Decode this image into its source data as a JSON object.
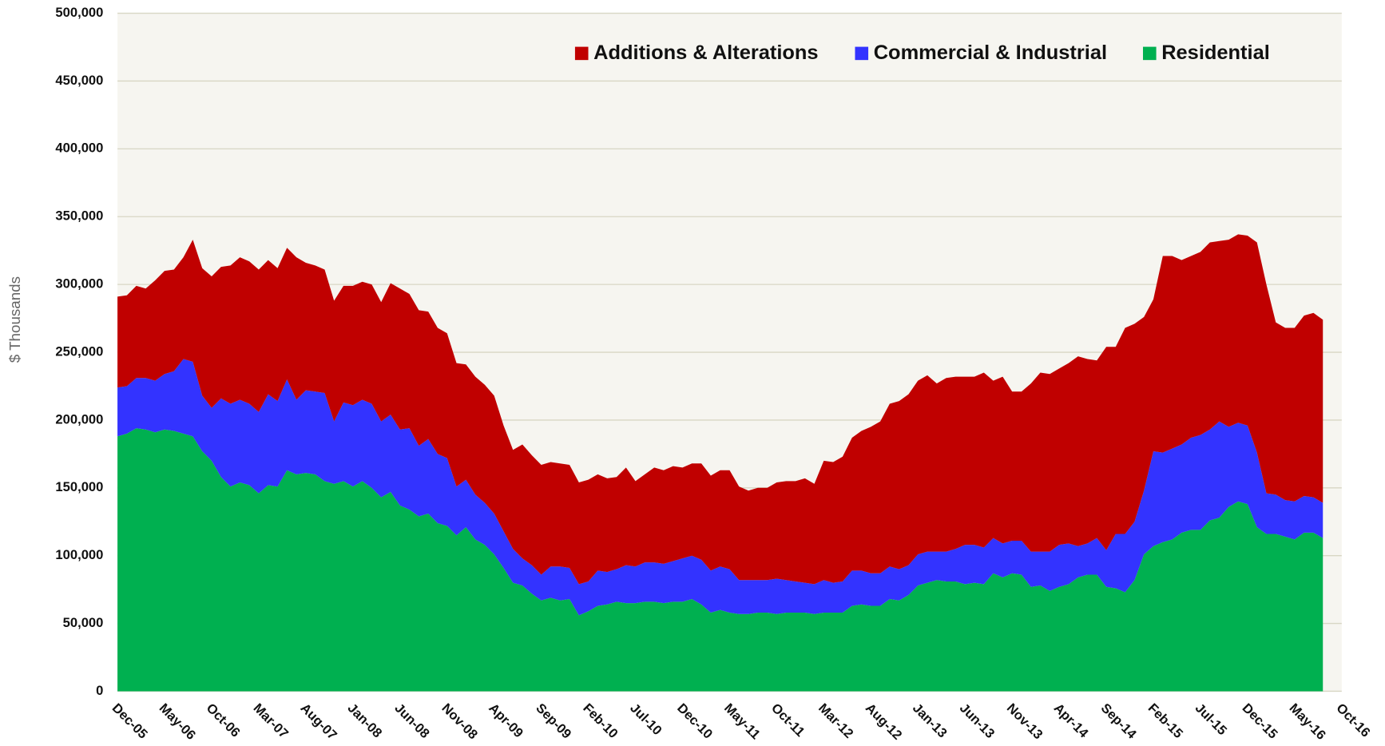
{
  "chart_data": {
    "type": "area",
    "stacked": true,
    "y_label": "$ Thousands",
    "categories": [
      "Dec-05",
      null,
      null,
      null,
      null,
      "May-06",
      null,
      null,
      null,
      null,
      "Oct-06",
      null,
      null,
      null,
      null,
      "Mar-07",
      null,
      null,
      null,
      null,
      "Aug-07",
      null,
      null,
      null,
      null,
      "Jan-08",
      null,
      null,
      null,
      null,
      "Jun-08",
      null,
      null,
      null,
      null,
      "Nov-08",
      null,
      null,
      null,
      null,
      "Apr-09",
      null,
      null,
      null,
      null,
      "Sep-09",
      null,
      null,
      null,
      null,
      "Feb-10",
      null,
      null,
      null,
      null,
      "Jul-10",
      null,
      null,
      null,
      null,
      "Dec-10",
      null,
      null,
      null,
      null,
      "May-11",
      null,
      null,
      null,
      null,
      "Oct-11",
      null,
      null,
      null,
      null,
      "Mar-12",
      null,
      null,
      null,
      null,
      "Aug-12",
      null,
      null,
      null,
      null,
      "Jan-13",
      null,
      null,
      null,
      null,
      "Jun-13",
      null,
      null,
      null,
      null,
      "Nov-13",
      null,
      null,
      null,
      null,
      "Apr-14",
      null,
      null,
      null,
      null,
      "Sep-14",
      null,
      null,
      null,
      null,
      "Feb-15",
      null,
      null,
      null,
      null,
      "Jul-15",
      null,
      null,
      null,
      null,
      "Dec-15",
      null,
      null,
      null,
      null,
      "May-16",
      null,
      null,
      null,
      null,
      "Oct-16"
    ],
    "series": [
      {
        "name": "Additions & Alterations",
        "color": "#c00000",
        "values": [
          67000,
          67000,
          68000,
          66000,
          74000,
          76000,
          75000,
          75000,
          90000,
          94000,
          97000,
          97000,
          102000,
          105000,
          105000,
          105000,
          99000,
          98000,
          97000,
          105000,
          94000,
          93000,
          91000,
          89000,
          86000,
          88000,
          87000,
          88000,
          88000,
          97000,
          104000,
          99000,
          100000,
          94000,
          93000,
          92000,
          91000,
          85000,
          87000,
          87000,
          87000,
          78000,
          73000,
          84000,
          81000,
          81000,
          77000,
          76000,
          76000,
          75000,
          75000,
          71000,
          69000,
          68000,
          72000,
          63000,
          65000,
          70000,
          69000,
          70000,
          67000,
          68000,
          71000,
          70000,
          71000,
          73000,
          69000,
          66000,
          68000,
          68000,
          71000,
          73000,
          74000,
          77000,
          74000,
          88000,
          89000,
          92000,
          98000,
          103000,
          108000,
          112000,
          120000,
          124000,
          126000,
          128000,
          130000,
          124000,
          128000,
          127000,
          124000,
          124000,
          129000,
          116000,
          123000,
          110000,
          110000,
          124000,
          132000,
          131000,
          130000,
          133000,
          140000,
          136000,
          131000,
          150000,
          138000,
          152000,
          146000,
          128000,
          112000,
          145000,
          142000,
          136000,
          134000,
          135000,
          138000,
          133000,
          138000,
          139000,
          140000,
          155000,
          154000,
          127000,
          127000,
          128000,
          133000,
          136000,
          135000,
          null,
          null
        ]
      },
      {
        "name": "Commercial & Industrial",
        "color": "#3333ff",
        "values": [
          36000,
          35000,
          37000,
          38000,
          38000,
          41000,
          44000,
          55000,
          55000,
          41000,
          39000,
          58000,
          61000,
          61000,
          60000,
          60000,
          67000,
          63000,
          67000,
          55000,
          61000,
          61000,
          65000,
          46000,
          58000,
          60000,
          60000,
          62000,
          56000,
          57000,
          56000,
          60000,
          52000,
          55000,
          51000,
          50000,
          36000,
          35000,
          33000,
          31000,
          30000,
          27000,
          25000,
          20000,
          21000,
          19000,
          23000,
          25000,
          23000,
          23000,
          22000,
          26000,
          24000,
          24000,
          28000,
          27000,
          29000,
          29000,
          29000,
          30000,
          32000,
          32000,
          33000,
          31000,
          32000,
          32000,
          25000,
          25000,
          24000,
          24000,
          26000,
          24000,
          23000,
          22000,
          22000,
          24000,
          22000,
          23000,
          26000,
          25000,
          24000,
          24000,
          24000,
          23000,
          22000,
          23000,
          23000,
          21000,
          22000,
          24000,
          29000,
          28000,
          27000,
          26000,
          25000,
          24000,
          25000,
          26000,
          25000,
          29000,
          31000,
          30000,
          23000,
          23000,
          27000,
          27000,
          40000,
          43000,
          43000,
          47000,
          70000,
          66000,
          67000,
          65000,
          68000,
          70000,
          67000,
          71000,
          59000,
          58000,
          58000,
          55000,
          30000,
          29000,
          27000,
          28000,
          27000,
          26000,
          26000,
          null,
          null
        ]
      },
      {
        "name": "Residential",
        "color": "#00b050",
        "values": [
          188000,
          190000,
          194000,
          193000,
          191000,
          193000,
          192000,
          190000,
          188000,
          177000,
          170000,
          158000,
          151000,
          154000,
          152000,
          146000,
          152000,
          151000,
          163000,
          160000,
          161000,
          160000,
          155000,
          153000,
          155000,
          151000,
          155000,
          150000,
          143000,
          147000,
          137000,
          134000,
          129000,
          131000,
          124000,
          122000,
          115000,
          121000,
          112000,
          108000,
          101000,
          91000,
          80000,
          78000,
          72000,
          67000,
          69000,
          67000,
          68000,
          56000,
          59000,
          63000,
          64000,
          66000,
          65000,
          65000,
          66000,
          66000,
          65000,
          66000,
          66000,
          68000,
          64000,
          58000,
          60000,
          58000,
          57000,
          57000,
          58000,
          58000,
          57000,
          58000,
          58000,
          58000,
          57000,
          58000,
          58000,
          58000,
          63000,
          64000,
          63000,
          63000,
          68000,
          67000,
          71000,
          78000,
          80000,
          82000,
          81000,
          81000,
          79000,
          80000,
          79000,
          87000,
          84000,
          87000,
          86000,
          77000,
          78000,
          74000,
          77000,
          79000,
          84000,
          86000,
          86000,
          77000,
          76000,
          73000,
          82000,
          101000,
          107000,
          110000,
          112000,
          117000,
          119000,
          119000,
          126000,
          128000,
          136000,
          140000,
          138000,
          121000,
          116000,
          116000,
          114000,
          112000,
          117000,
          117000,
          113000,
          null,
          null
        ]
      }
    ],
    "ylim": [
      0,
      500000
    ],
    "yticks": [
      0,
      {
        "value": 50000,
        "label": "50,000"
      },
      {
        "value": 100000,
        "label": "100,000"
      },
      {
        "value": 150000,
        "label": "150,000"
      },
      {
        "value": 200000,
        "label": "200,000"
      },
      {
        "value": 250000,
        "label": "250,000"
      },
      {
        "value": 300000,
        "label": "300,000"
      },
      {
        "value": 350000,
        "label": "350,000"
      },
      {
        "value": 400000,
        "label": "400,000"
      },
      {
        "value": 450000,
        "label": "450,000"
      },
      {
        "value": 500000,
        "label": "500,000"
      }
    ],
    "grid": true,
    "legend": "top"
  }
}
